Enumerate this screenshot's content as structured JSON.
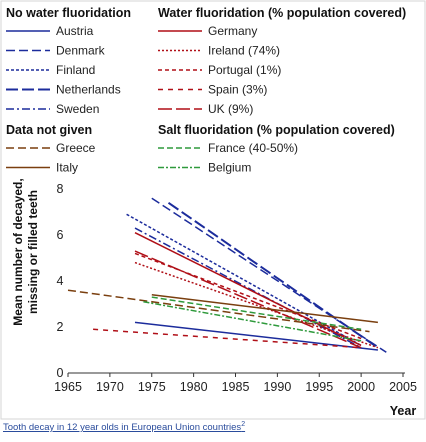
{
  "chart_data": {
    "type": "line",
    "xlabel": "Year",
    "ylabel_lines": [
      "Mean number of decayed,",
      "missing or filled teeth"
    ],
    "xlim": [
      1965,
      2005
    ],
    "ylim": [
      0,
      8
    ],
    "xticks": [
      1965,
      1970,
      1975,
      1980,
      1985,
      1990,
      1995,
      2000,
      2005
    ],
    "yticks": [
      0,
      2,
      4,
      6,
      8
    ],
    "grid": false,
    "legend_groups": [
      {
        "title": "No water fluoridation",
        "position": "top-left"
      },
      {
        "title": "Water fluoridation (% population covered)",
        "position": "top-right"
      },
      {
        "title": "Data not given",
        "position": "upper-left"
      },
      {
        "title": "Salt fluoridation (% population covered)",
        "position": "upper-right"
      }
    ],
    "series": [
      {
        "name": "Austria",
        "group": 0,
        "color": "#1c2c9c",
        "dash": "",
        "width": 1.5,
        "x": [
          1973,
          2002
        ],
        "y": [
          2.2,
          1.0
        ]
      },
      {
        "name": "Denmark",
        "group": 0,
        "color": "#1c2c9c",
        "dash": "9,4",
        "width": 1.5,
        "x": [
          1975,
          2003
        ],
        "y": [
          7.6,
          0.9
        ]
      },
      {
        "name": "Finland",
        "group": 0,
        "color": "#1c2c9c",
        "dash": "3,2",
        "width": 1.5,
        "x": [
          1972,
          2000
        ],
        "y": [
          6.9,
          1.2
        ]
      },
      {
        "name": "Netherlands",
        "group": 0,
        "color": "#1c2c9c",
        "dash": "12,4",
        "width": 2,
        "x": [
          1977,
          2002
        ],
        "y": [
          7.4,
          1.1
        ]
      },
      {
        "name": "Sweden",
        "group": 0,
        "color": "#1c2c9c",
        "dash": "8,3,2,3",
        "width": 1.5,
        "x": [
          1973,
          2000
        ],
        "y": [
          6.3,
          1.1
        ]
      },
      {
        "name": "Germany",
        "group": 1,
        "color": "#b00f17",
        "dash": "",
        "width": 1.5,
        "x": [
          1973,
          2000
        ],
        "y": [
          6.1,
          1.2
        ]
      },
      {
        "name": "Ireland (74%)",
        "group": 1,
        "color": "#b00f17",
        "dash": "2,2",
        "width": 1.5,
        "x": [
          1973,
          2002
        ],
        "y": [
          4.8,
          1.1
        ]
      },
      {
        "name": "Portugal (1%)",
        "group": 1,
        "color": "#b00f17",
        "dash": "4,3",
        "width": 1.5,
        "x": [
          1973,
          2000
        ],
        "y": [
          5.2,
          1.5
        ]
      },
      {
        "name": "Spain (3%)",
        "group": 1,
        "color": "#b00f17",
        "dash": "5,5",
        "width": 1.5,
        "x": [
          1968,
          2000
        ],
        "y": [
          1.9,
          1.1
        ]
      },
      {
        "name": "UK (9%)",
        "group": 1,
        "color": "#b00f17",
        "dash": "14,4",
        "width": 1.5,
        "x": [
          1973,
          2000
        ],
        "y": [
          5.3,
          1.1
        ]
      },
      {
        "name": "Greece",
        "group": 2,
        "color": "#7a3f0f",
        "dash": "8,4",
        "width": 1.5,
        "x": [
          1965,
          2001
        ],
        "y": [
          3.6,
          1.8
        ]
      },
      {
        "name": "Italy",
        "group": 2,
        "color": "#7a3f0f",
        "dash": "",
        "width": 1.5,
        "x": [
          1975,
          2002
        ],
        "y": [
          3.4,
          2.2
        ]
      },
      {
        "name": "France (40-50%)",
        "group": 3,
        "color": "#2f9a3c",
        "dash": "6,3",
        "width": 1.5,
        "x": [
          1975,
          2000
        ],
        "y": [
          3.3,
          1.9
        ]
      },
      {
        "name": "Belgium",
        "group": 3,
        "color": "#2f9a3c",
        "dash": "6,2,2,2",
        "width": 1.5,
        "x": [
          1974,
          2000
        ],
        "y": [
          3.1,
          1.4
        ]
      }
    ]
  },
  "caption": {
    "text": "Tooth decay in 12 year olds in European Union countries",
    "superscript": "2"
  }
}
